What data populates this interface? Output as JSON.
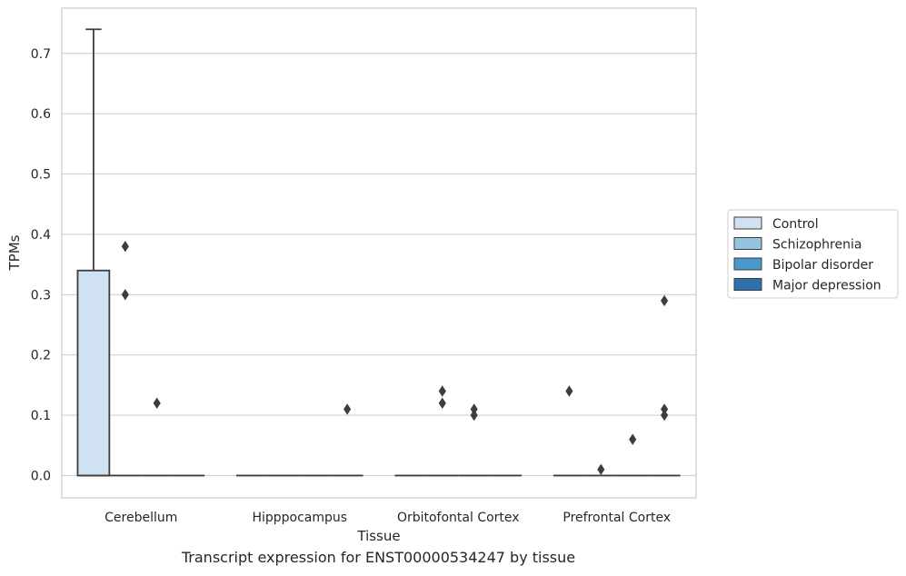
{
  "caption": "Transcript expression for ENST00000534247 by tissue",
  "chart_data": {
    "type": "box",
    "xlabel": "Tissue",
    "ylabel": "TPMs",
    "ylim": [
      -0.037,
      0.775
    ],
    "yticks": [
      0.0,
      0.1,
      0.2,
      0.3,
      0.4,
      0.5,
      0.6,
      0.7
    ],
    "ytick_labels": [
      "0.0",
      "0.1",
      "0.2",
      "0.3",
      "0.4",
      "0.5",
      "0.6",
      "0.7"
    ],
    "grid": "horizontal",
    "legend_placement": "right",
    "categories": [
      "Cerebellum",
      "Hipppocampus",
      "Orbitofontal Cortex",
      "Prefrontal Cortex"
    ],
    "series": [
      {
        "name": "Control",
        "color": "#d0e1f2",
        "boxes": [
          {
            "category": "Cerebellum",
            "whisker_low": 0.0,
            "q1": 0.0,
            "median": 0.0,
            "q3": 0.34,
            "whisker_high": 0.74,
            "outliers": []
          },
          {
            "category": "Hipppocampus",
            "whisker_low": 0.0,
            "q1": 0.0,
            "median": 0.0,
            "q3": 0.0,
            "whisker_high": 0.0,
            "outliers": []
          },
          {
            "category": "Orbitofontal Cortex",
            "whisker_low": 0.0,
            "q1": 0.0,
            "median": 0.0,
            "q3": 0.0,
            "whisker_high": 0.0,
            "outliers": []
          },
          {
            "category": "Prefrontal Cortex",
            "whisker_low": 0.0,
            "q1": 0.0,
            "median": 0.0,
            "q3": 0.0,
            "whisker_high": 0.0,
            "outliers": [
              0.14
            ]
          }
        ]
      },
      {
        "name": "Schizophrenia",
        "color": "#94c4df",
        "boxes": [
          {
            "category": "Cerebellum",
            "whisker_low": 0.0,
            "q1": 0.0,
            "median": 0.0,
            "q3": 0.0,
            "whisker_high": 0.0,
            "outliers": [
              0.38,
              0.3
            ]
          },
          {
            "category": "Hipppocampus",
            "whisker_low": 0.0,
            "q1": 0.0,
            "median": 0.0,
            "q3": 0.0,
            "whisker_high": 0.0,
            "outliers": []
          },
          {
            "category": "Orbitofontal Cortex",
            "whisker_low": 0.0,
            "q1": 0.0,
            "median": 0.0,
            "q3": 0.0,
            "whisker_high": 0.0,
            "outliers": [
              0.14,
              0.12
            ]
          },
          {
            "category": "Prefrontal Cortex",
            "whisker_low": 0.0,
            "q1": 0.0,
            "median": 0.0,
            "q3": 0.0,
            "whisker_high": 0.0,
            "outliers": [
              0.01
            ]
          }
        ]
      },
      {
        "name": "Bipolar disorder",
        "color": "#4a98c9",
        "boxes": [
          {
            "category": "Cerebellum",
            "whisker_low": 0.0,
            "q1": 0.0,
            "median": 0.0,
            "q3": 0.0,
            "whisker_high": 0.0,
            "outliers": [
              0.12
            ]
          },
          {
            "category": "Hipppocampus",
            "whisker_low": 0.0,
            "q1": 0.0,
            "median": 0.0,
            "q3": 0.0,
            "whisker_high": 0.0,
            "outliers": []
          },
          {
            "category": "Orbitofontal Cortex",
            "whisker_low": 0.0,
            "q1": 0.0,
            "median": 0.0,
            "q3": 0.0,
            "whisker_high": 0.0,
            "outliers": [
              0.11,
              0.1
            ]
          },
          {
            "category": "Prefrontal Cortex",
            "whisker_low": 0.0,
            "q1": 0.0,
            "median": 0.0,
            "q3": 0.0,
            "whisker_high": 0.0,
            "outliers": [
              0.06
            ]
          }
        ]
      },
      {
        "name": "Major depression",
        "color": "#2e6fad",
        "boxes": [
          {
            "category": "Cerebellum",
            "whisker_low": 0.0,
            "q1": 0.0,
            "median": 0.0,
            "q3": 0.0,
            "whisker_high": 0.0,
            "outliers": []
          },
          {
            "category": "Hipppocampus",
            "whisker_low": 0.0,
            "q1": 0.0,
            "median": 0.0,
            "q3": 0.0,
            "whisker_high": 0.0,
            "outliers": [
              0.11
            ]
          },
          {
            "category": "Orbitofontal Cortex",
            "whisker_low": 0.0,
            "q1": 0.0,
            "median": 0.0,
            "q3": 0.0,
            "whisker_high": 0.0,
            "outliers": []
          },
          {
            "category": "Prefrontal Cortex",
            "whisker_low": 0.0,
            "q1": 0.0,
            "median": 0.0,
            "q3": 0.0,
            "whisker_high": 0.0,
            "outliers": [
              0.29,
              0.11,
              0.1
            ]
          }
        ]
      }
    ]
  }
}
